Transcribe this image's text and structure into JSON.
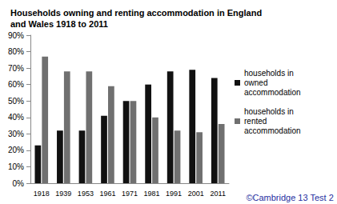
{
  "chart_data": {
    "type": "bar",
    "title": "Households owning and renting accommodation in England and Wales 1918 to 2011",
    "categories": [
      "1918",
      "1939",
      "1953",
      "1961",
      "1971",
      "1981",
      "1991",
      "2001",
      "2011"
    ],
    "series": [
      {
        "name": "households in owned accommodation",
        "color": "#111111",
        "values": [
          23,
          32,
          32,
          41,
          50,
          60,
          68,
          69,
          64
        ]
      },
      {
        "name": "households in rented accommodation",
        "color": "#707070",
        "values": [
          77,
          68,
          68,
          59,
          50,
          40,
          32,
          31,
          36
        ]
      }
    ],
    "ylim": [
      0,
      90
    ],
    "yticks": [
      {
        "value": 0,
        "label": "0%"
      },
      {
        "value": 10,
        "label": "10%"
      },
      {
        "value": 20,
        "label": "20%"
      },
      {
        "value": 30,
        "label": "30%"
      },
      {
        "value": 40,
        "label": "40%"
      },
      {
        "value": 50,
        "label": "50%"
      },
      {
        "value": 60,
        "label": "60%"
      },
      {
        "value": 70,
        "label": "70%"
      },
      {
        "value": 80,
        "label": "80%"
      },
      {
        "value": 90,
        "label": "90%"
      }
    ],
    "grid": false,
    "legend": "right",
    "annotation": "©Cambridge 13 Test 2"
  }
}
